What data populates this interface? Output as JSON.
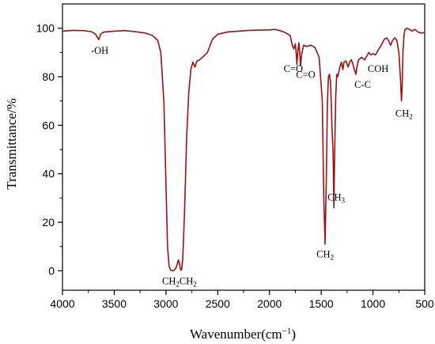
{
  "chart_data": {
    "type": "line",
    "title": "",
    "xlabel_main": "Wavenumber(cm",
    "xlabel_sup": "−1",
    "xlabel_end": ")",
    "ylabel": "Transmittance/%",
    "xlim": [
      4000,
      500
    ],
    "ylim": [
      -8,
      110
    ],
    "x_reversed": true,
    "grid": false,
    "x_ticks": [
      4000,
      3500,
      3000,
      2500,
      2000,
      1500,
      1000,
      500
    ],
    "y_ticks": [
      0,
      20,
      40,
      60,
      80,
      100
    ],
    "series": [
      {
        "color": "#a01010",
        "points": [
          [
            4000,
            98.8
          ],
          [
            3900,
            99.1
          ],
          [
            3800,
            99.0
          ],
          [
            3720,
            98.6
          ],
          [
            3680,
            97.5
          ],
          [
            3650,
            95.3
          ],
          [
            3630,
            97.6
          ],
          [
            3600,
            98.4
          ],
          [
            3500,
            98.8
          ],
          [
            3400,
            99.0
          ],
          [
            3300,
            98.6
          ],
          [
            3200,
            98.0
          ],
          [
            3130,
            97.0
          ],
          [
            3080,
            95.0
          ],
          [
            3050,
            90.0
          ],
          [
            3020,
            70.0
          ],
          [
            3000,
            35.0
          ],
          [
            2985,
            10.0
          ],
          [
            2970,
            2.0
          ],
          [
            2955,
            0.3
          ],
          [
            2935,
            0.0
          ],
          [
            2915,
            0.4
          ],
          [
            2900,
            1.5
          ],
          [
            2880,
            4.5
          ],
          [
            2870,
            3.0
          ],
          [
            2862,
            1.0
          ],
          [
            2855,
            0.2
          ],
          [
            2848,
            0.6
          ],
          [
            2838,
            5.0
          ],
          [
            2820,
            25.0
          ],
          [
            2800,
            55.0
          ],
          [
            2780,
            73.0
          ],
          [
            2760,
            83.0
          ],
          [
            2740,
            86.0
          ],
          [
            2720,
            84.0
          ],
          [
            2700,
            86.5
          ],
          [
            2680,
            86.8
          ],
          [
            2660,
            87.5
          ],
          [
            2600,
            90.0
          ],
          [
            2550,
            95.5
          ],
          [
            2500,
            97.5
          ],
          [
            2400,
            98.5
          ],
          [
            2300,
            98.8
          ],
          [
            2200,
            99.1
          ],
          [
            2100,
            99.2
          ],
          [
            2000,
            99.3
          ],
          [
            1950,
            99.5
          ],
          [
            1900,
            99.0
          ],
          [
            1850,
            98.3
          ],
          [
            1800,
            97.0
          ],
          [
            1780,
            93.0
          ],
          [
            1765,
            91.5
          ],
          [
            1750,
            93.5
          ],
          [
            1740,
            89.0
          ],
          [
            1735,
            85.0
          ],
          [
            1725,
            91.0
          ],
          [
            1715,
            94.0
          ],
          [
            1705,
            88.0
          ],
          [
            1700,
            84.5
          ],
          [
            1690,
            89.0
          ],
          [
            1670,
            93.0
          ],
          [
            1640,
            92.5
          ],
          [
            1600,
            93.0
          ],
          [
            1560,
            92.0
          ],
          [
            1520,
            88.0
          ],
          [
            1490,
            70.0
          ],
          [
            1475,
            30.0
          ],
          [
            1463,
            11.0
          ],
          [
            1450,
            40.0
          ],
          [
            1440,
            70.0
          ],
          [
            1430,
            80.0
          ],
          [
            1420,
            81.0
          ],
          [
            1410,
            78.0
          ],
          [
            1395,
            58.0
          ],
          [
            1385,
            48.0
          ],
          [
            1377,
            26.0
          ],
          [
            1370,
            50.0
          ],
          [
            1360,
            72.0
          ],
          [
            1350,
            81.0
          ],
          [
            1340,
            80.0
          ],
          [
            1320,
            84.0
          ],
          [
            1305,
            86.0
          ],
          [
            1290,
            83.0
          ],
          [
            1280,
            86.0
          ],
          [
            1260,
            86.5
          ],
          [
            1240,
            84.0
          ],
          [
            1225,
            86.0
          ],
          [
            1210,
            87.0
          ],
          [
            1200,
            86.0
          ],
          [
            1180,
            83.0
          ],
          [
            1165,
            81.0
          ],
          [
            1155,
            84.0
          ],
          [
            1140,
            87.0
          ],
          [
            1110,
            88.0
          ],
          [
            1080,
            87.0
          ],
          [
            1060,
            88.5
          ],
          [
            1040,
            90.0
          ],
          [
            1020,
            89.0
          ],
          [
            1000,
            89.5
          ],
          [
            975,
            89.0
          ],
          [
            950,
            91.0
          ],
          [
            920,
            93.0
          ],
          [
            890,
            95.5
          ],
          [
            870,
            96.0
          ],
          [
            850,
            95.0
          ],
          [
            830,
            93.0
          ],
          [
            810,
            95.0
          ],
          [
            790,
            96.0
          ],
          [
            770,
            95.0
          ],
          [
            750,
            90.0
          ],
          [
            735,
            80.0
          ],
          [
            725,
            70.0
          ],
          [
            718,
            76.0
          ],
          [
            710,
            90.0
          ],
          [
            700,
            97.0
          ],
          [
            690,
            99.5
          ],
          [
            670,
            100.0
          ],
          [
            640,
            99.3
          ],
          [
            620,
            98.8
          ],
          [
            600,
            99.5
          ],
          [
            580,
            99.0
          ],
          [
            560,
            98.3
          ],
          [
            530,
            98.0
          ],
          [
            500,
            98.2
          ]
        ]
      }
    ],
    "annotations": [
      {
        "key": "oh",
        "main": "-OH",
        "sub": "",
        "after": "",
        "x": 3640,
        "y": 89.5,
        "anchor": "middle"
      },
      {
        "key": "co1",
        "main": "C=O",
        "sub": "",
        "after": "",
        "x": 1770,
        "y": 82.0,
        "anchor": "middle"
      },
      {
        "key": "co2",
        "main": "C=O",
        "sub": "",
        "after": "",
        "x": 1650,
        "y": 79.5,
        "anchor": "middle"
      },
      {
        "key": "cc",
        "main": "C-C",
        "sub": "",
        "after": "",
        "x": 1100,
        "y": 75.5,
        "anchor": "middle"
      },
      {
        "key": "coh",
        "main": "COH",
        "sub": "",
        "after": "",
        "x": 950,
        "y": 82.0,
        "anchor": "middle"
      },
      {
        "key": "ch2r",
        "main": "CH",
        "sub": "2",
        "after": "",
        "x": 700,
        "y": 63.5,
        "anchor": "middle"
      },
      {
        "key": "ch3",
        "main": "CH",
        "sub": "3",
        "after": "",
        "x": 1355,
        "y": 29.0,
        "anchor": "middle"
      },
      {
        "key": "ch2m",
        "main": "CH",
        "sub": "2",
        "after": "",
        "x": 1462,
        "y": 5.5,
        "anchor": "middle"
      },
      {
        "key": "ch2d",
        "main": "CH",
        "sub": "2",
        "after": "CH2",
        "x": 2870,
        "y": -5.5,
        "anchor": "middle"
      }
    ]
  }
}
